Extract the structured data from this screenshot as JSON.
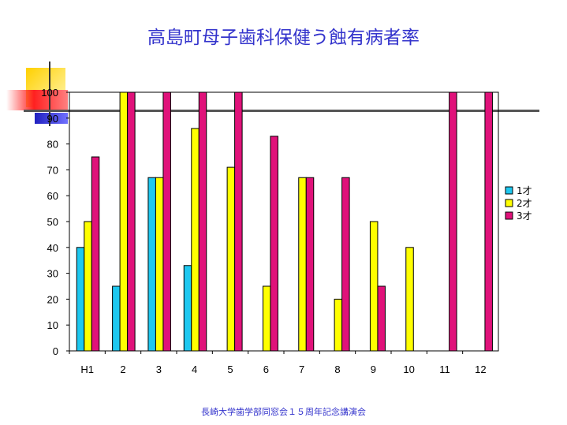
{
  "title": "高島町母子歯科保健う蝕有病者率",
  "footer": "長崎大学歯学部同窓会１５周年記念講演会",
  "chart_data": {
    "type": "bar",
    "categories": [
      "H1",
      "2",
      "3",
      "4",
      "5",
      "6",
      "7",
      "8",
      "9",
      "10",
      "11",
      "12"
    ],
    "series": [
      {
        "name": "1才",
        "color": "#1ec8f0",
        "values": [
          40,
          25,
          67,
          33,
          0,
          0,
          0,
          0,
          0,
          0,
          0,
          0
        ]
      },
      {
        "name": "2才",
        "color": "#ffff00",
        "values": [
          50,
          100,
          67,
          86,
          71,
          25,
          67,
          20,
          50,
          40,
          0,
          0
        ]
      },
      {
        "name": "3才",
        "color": "#e0127a",
        "values": [
          75,
          100,
          100,
          100,
          100,
          83,
          67,
          67,
          25,
          0,
          100,
          100
        ]
      }
    ],
    "ylim": [
      0,
      100
    ],
    "yticks": [
      0,
      10,
      20,
      30,
      40,
      50,
      60,
      70,
      80,
      90,
      100
    ],
    "grid": false,
    "legend_position": "right"
  }
}
